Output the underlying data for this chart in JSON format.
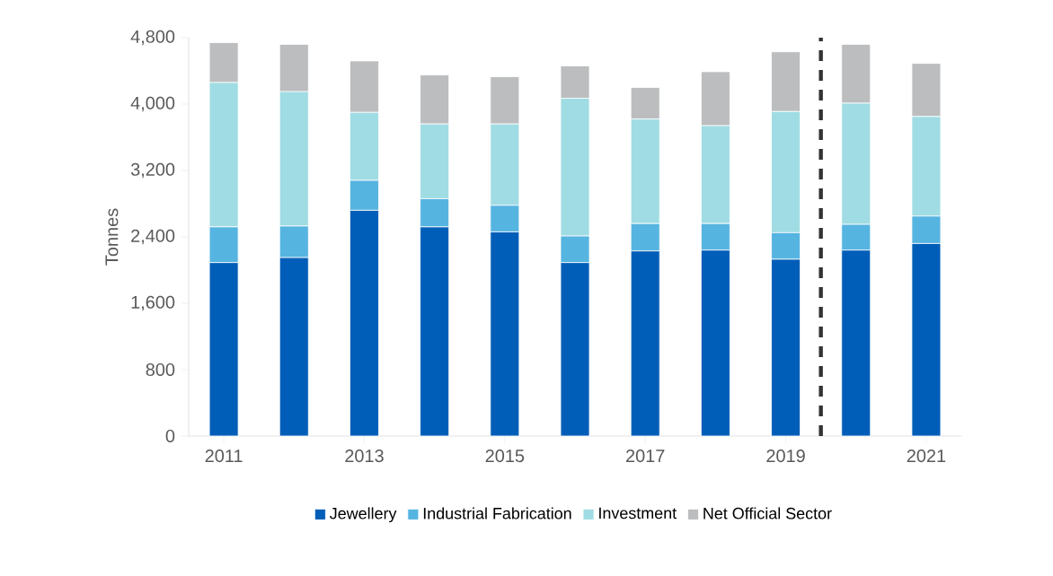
{
  "chart_data": {
    "type": "bar",
    "stacked": true,
    "ylabel": "Tonnes",
    "x": [
      2011,
      2012,
      2013,
      2014,
      2015,
      2016,
      2017,
      2018,
      2019,
      2020,
      2021
    ],
    "xlim": [
      2010.5,
      2021.5
    ],
    "xticks": [
      2011,
      2013,
      2015,
      2017,
      2019,
      2021
    ],
    "ylim": [
      0,
      4800
    ],
    "yticks": [
      0,
      800,
      {
        "value": 1600,
        "label": "1,600"
      },
      {
        "value": 2400,
        "label": "2,400"
      },
      {
        "value": 3200,
        "label": "3,200"
      },
      {
        "value": 4000,
        "label": "4,000"
      },
      {
        "value": 4800,
        "label": "4,800"
      }
    ],
    "series": [
      {
        "name": "Jewellery",
        "color": "#005eb8",
        "values": [
          2090,
          2150,
          2720,
          2520,
          2460,
          2090,
          2230,
          2240,
          2130,
          2240,
          2320
        ]
      },
      {
        "name": "Industrial Fabrication",
        "color": "#56b4e0",
        "values": [
          430,
          380,
          360,
          340,
          320,
          320,
          330,
          320,
          320,
          310,
          330
        ]
      },
      {
        "name": "Investment",
        "color": "#a0dce3",
        "values": [
          1740,
          1620,
          820,
          900,
          980,
          1660,
          1260,
          1180,
          1460,
          1460,
          1200
        ]
      },
      {
        "name": "Net Official Sector",
        "color": "#bbbdbf",
        "values": [
          480,
          570,
          620,
          590,
          570,
          390,
          380,
          650,
          720,
          710,
          640
        ]
      }
    ],
    "ref_lines": [
      {
        "axis": "x",
        "value": 2019.5,
        "line_style": "dashed",
        "color": "#333333"
      }
    ],
    "legend": "bottom",
    "grid": false
  }
}
